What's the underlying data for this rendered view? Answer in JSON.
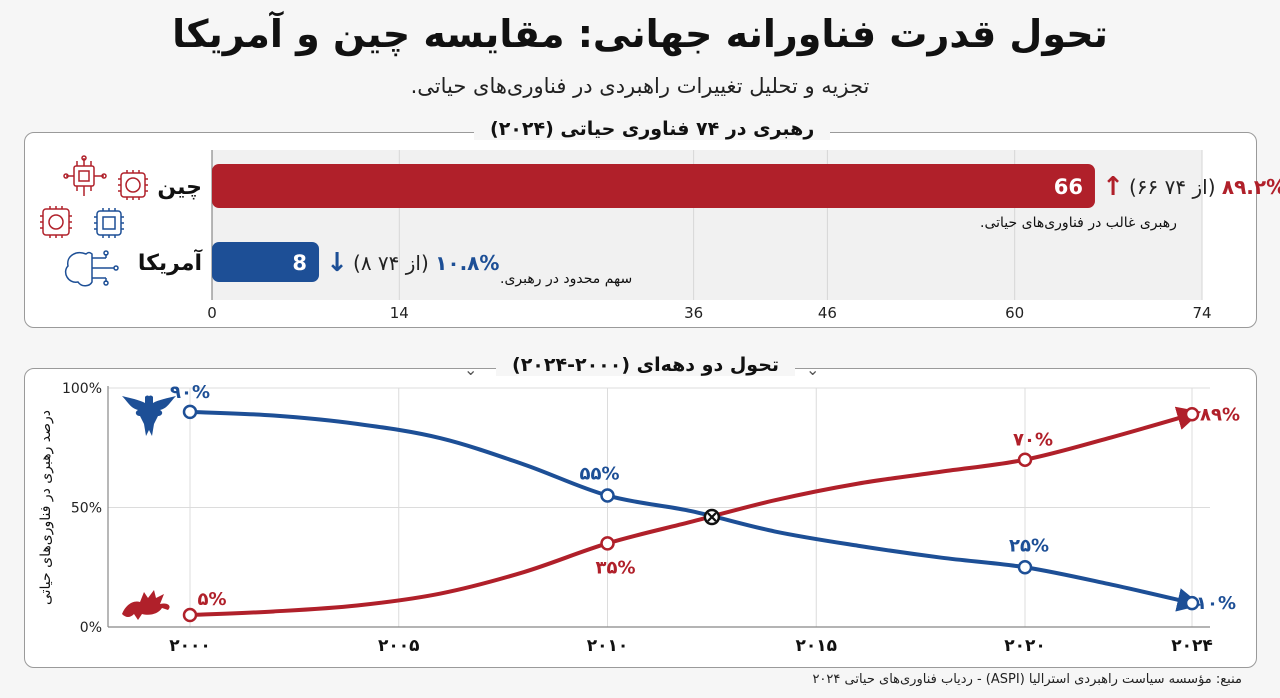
{
  "header": {
    "title": "تحول قدرت فناورانه جهانی: مقایسه چین و آمریکا",
    "subtitle": "تجزیه و تحلیل تغییرات راهبردی در فناوری‌های حیاتی."
  },
  "colors": {
    "china": "#b0202a",
    "usa": "#1d4f96",
    "grid": "#dddddd"
  },
  "chart_data": [
    {
      "type": "bar",
      "orientation": "horizontal",
      "title": "رهبری در ۷۴ فناوری حیاتی (۲۰۲۴)",
      "xlim": [
        0,
        74
      ],
      "xticks": [
        "0",
        "14",
        "36",
        "46",
        "60",
        "74"
      ],
      "xtick_values": [
        0,
        14,
        36,
        46,
        60,
        74
      ],
      "bars": [
        {
          "label": "چین",
          "value": 66,
          "value_label": "66",
          "percent": "۸۹.۲%",
          "detail": "(۶۶ از ۷۴)",
          "note": "رهبری غالب در فناوری‌های حیاتی.",
          "arrow": "↑",
          "color": "#b0202a"
        },
        {
          "label": "آمریکا",
          "value": 8,
          "value_label": "8",
          "percent": "۱۰.۸%",
          "detail": "(۸ از ۷۴)",
          "note": "سهم محدود در رهبری.",
          "arrow": "↓",
          "color": "#1d4f96"
        }
      ]
    },
    {
      "type": "line",
      "title": "تحول دو دهه‌ای (۲۰۰۰-۲۰۲۴)",
      "ylabel": "درصد رهبری در فناوری‌های حیاتی",
      "xlim": [
        2000,
        2024
      ],
      "ylim": [
        0,
        100
      ],
      "xticks": [
        2000,
        2005,
        2010,
        2015,
        2020,
        2024
      ],
      "xtick_labels": [
        "۲۰۰۰",
        "۲۰۰۵",
        "۲۰۱۰",
        "۲۰۱۵",
        "۲۰۲۰",
        "۲۰۲۴"
      ],
      "yticks": [
        0,
        50,
        100
      ],
      "ytick_labels": [
        "0%",
        "50%",
        "100%"
      ],
      "crossover": {
        "x": 2012.5,
        "y": 46
      },
      "series": [
        {
          "name": "آمریکا",
          "color": "#1d4f96",
          "icon": "eagle-icon",
          "curve_x": [
            2000,
            2002,
            2004,
            2006,
            2008,
            2010,
            2012,
            2014,
            2016,
            2018,
            2020,
            2022,
            2024
          ],
          "curve_y": [
            90,
            88.5,
            85,
            79,
            68,
            55,
            48.5,
            40,
            34,
            29,
            25,
            18,
            10
          ],
          "points": [
            {
              "x": 2000,
              "y": 90,
              "label": "۹۰%"
            },
            {
              "x": 2010,
              "y": 55,
              "label": "۵۵%"
            },
            {
              "x": 2020,
              "y": 25,
              "label": "۲۵%"
            },
            {
              "x": 2024,
              "y": 10,
              "label": "۱۰%"
            }
          ]
        },
        {
          "name": "چین",
          "color": "#b0202a",
          "icon": "dragon-icon",
          "curve_x": [
            2000,
            2002,
            2004,
            2006,
            2008,
            2010,
            2012,
            2014,
            2016,
            2018,
            2020,
            2022,
            2024
          ],
          "curve_y": [
            5,
            6.5,
            9,
            14,
            23,
            35,
            44,
            53,
            60,
            65,
            70,
            79,
            89
          ],
          "points": [
            {
              "x": 2000,
              "y": 5,
              "label": "۵%"
            },
            {
              "x": 2010,
              "y": 35,
              "label": "۳۵%"
            },
            {
              "x": 2020,
              "y": 70,
              "label": "۷۰%"
            },
            {
              "x": 2024,
              "y": 89,
              "label": "۸۹%"
            }
          ]
        }
      ]
    }
  ],
  "footer": {
    "source": "منبع: مؤسسه سیاست راهبردی استرالیا (ASPI) - ردیاب فناوری‌های حیاتی ۲۰۲۴"
  }
}
